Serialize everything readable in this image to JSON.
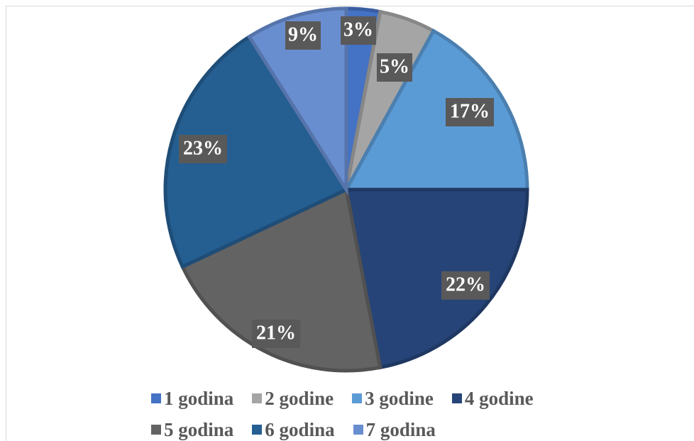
{
  "chart_data": {
    "type": "pie",
    "title": "",
    "slices": [
      {
        "name": "1 godina",
        "value": 3,
        "label": "3%",
        "color": "#4472C4"
      },
      {
        "name": "2 godine",
        "value": 5,
        "label": "5%",
        "color": "#A5A5A5"
      },
      {
        "name": "3 godine",
        "value": 17,
        "label": "17%",
        "color": "#5B9BD5"
      },
      {
        "name": "4 godine",
        "value": 22,
        "label": "22%",
        "color": "#264478"
      },
      {
        "name": "5 godina",
        "value": 21,
        "label": "21%",
        "color": "#636363"
      },
      {
        "name": "6 godina",
        "value": 23,
        "label": "23%",
        "color": "#255E91"
      },
      {
        "name": "7 godina",
        "value": 9,
        "label": "9%",
        "color": "#698ED0"
      }
    ],
    "legend_position": "bottom",
    "data_label_style": {
      "background": "#595959",
      "text_color": "#ffffff"
    }
  },
  "legend": {
    "row1": [
      "1 godina",
      "2 godine",
      "3 godine",
      "4 godine"
    ],
    "row2": [
      "5 godina",
      "6 godina",
      "7 godina"
    ]
  }
}
